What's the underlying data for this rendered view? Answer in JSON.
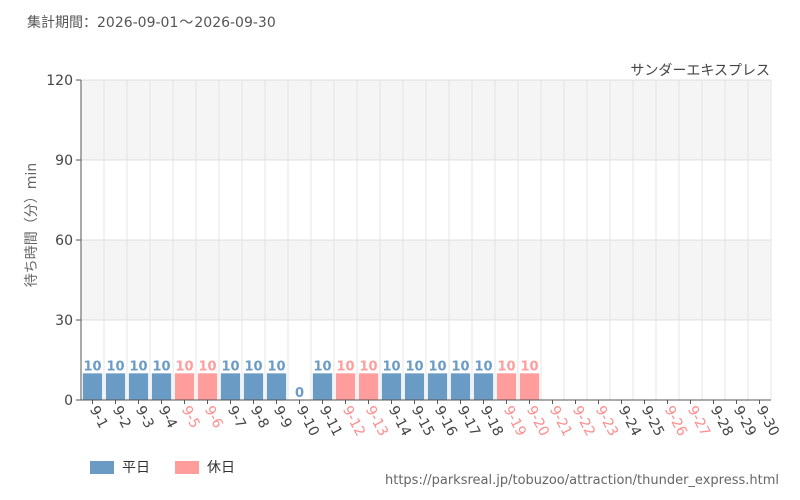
{
  "header": {
    "period_label": "集計期間：",
    "period_start": "2026-09-01",
    "period_sep": "〜",
    "period_end": "2026-09-30"
  },
  "legend": {
    "weekday_label": "平日",
    "holiday_label": "休日",
    "weekday_color": "#6a9bc5",
    "holiday_color": "#ff9c9c"
  },
  "footer": {
    "source_url": "https://parksreal.jp/tobuzoo/attraction/thunder_express.html"
  },
  "chart_data": {
    "type": "bar",
    "title": "サンダーエキスプレス",
    "ylabel": "待ち時間（分）min",
    "xlabel": "",
    "ylim": [
      0,
      120
    ],
    "yticks": [
      0,
      30,
      60,
      90,
      120
    ],
    "grid": true,
    "categories": [
      "9-1",
      "9-2",
      "9-3",
      "9-4",
      "9-5",
      "9-6",
      "9-7",
      "9-8",
      "9-9",
      "9-10",
      "9-11",
      "9-12",
      "9-13",
      "9-14",
      "9-15",
      "9-16",
      "9-17",
      "9-18",
      "9-19",
      "9-20",
      "9-21",
      "9-22",
      "9-23",
      "9-24",
      "9-25",
      "9-26",
      "9-27",
      "9-28",
      "9-29",
      "9-30"
    ],
    "day_type": [
      "weekday",
      "weekday",
      "weekday",
      "weekday",
      "holiday",
      "holiday",
      "weekday",
      "weekday",
      "weekday",
      "weekday",
      "weekday",
      "holiday",
      "holiday",
      "weekday",
      "weekday",
      "weekday",
      "weekday",
      "weekday",
      "holiday",
      "holiday",
      "holiday",
      "holiday",
      "holiday",
      "weekday",
      "weekday",
      "holiday",
      "holiday",
      "weekday",
      "weekday",
      "weekday"
    ],
    "values": [
      10,
      10,
      10,
      10,
      10,
      10,
      10,
      10,
      10,
      0,
      10,
      10,
      10,
      10,
      10,
      10,
      10,
      10,
      10,
      10,
      null,
      null,
      null,
      null,
      null,
      null,
      null,
      null,
      null,
      null
    ],
    "series": [
      {
        "name": "平日",
        "color": "#6a9bc5"
      },
      {
        "name": "休日",
        "color": "#ff9c9c"
      }
    ],
    "colors": {
      "weekday": "#6a9bc5",
      "holiday": "#ff9c9c",
      "weekday_tick": "#444444",
      "holiday_tick": "#ff8c8c"
    }
  }
}
